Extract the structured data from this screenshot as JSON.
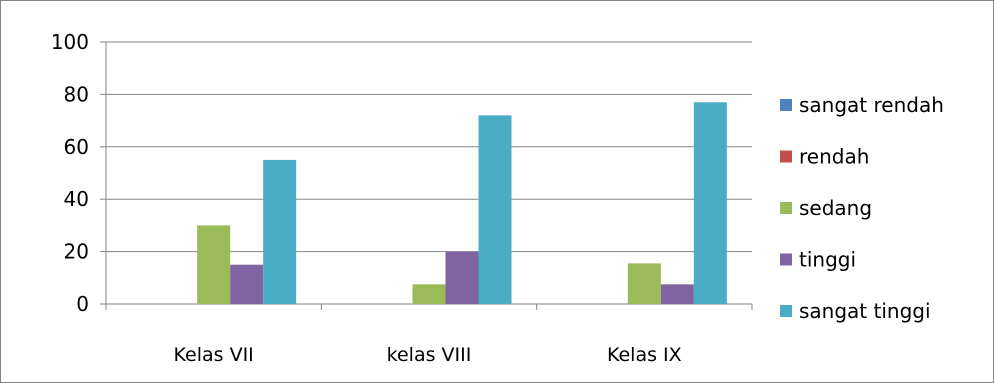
{
  "chart_data": {
    "type": "bar",
    "title": "",
    "xlabel": "",
    "ylabel": "",
    "categories": [
      "Kelas VII",
      "kelas VIII",
      "Kelas IX"
    ],
    "ylim": [
      0,
      100
    ],
    "yticks": [
      0,
      20,
      40,
      60,
      80,
      100
    ],
    "yticklabels": [
      "0",
      "20",
      "40",
      "60",
      "80",
      "100"
    ],
    "grid": true,
    "legend_position": "right",
    "series": [
      {
        "name": "sangat rendah",
        "color": "#4F81BD",
        "values": [
          0,
          0,
          0
        ]
      },
      {
        "name": "rendah",
        "color": "#C0504D",
        "values": [
          0,
          0,
          0
        ]
      },
      {
        "name": "sedang",
        "color": "#9BBB59",
        "values": [
          30,
          7.5,
          15.5
        ]
      },
      {
        "name": "tinggi",
        "color": "#8064A2",
        "values": [
          15,
          20,
          7.5
        ]
      },
      {
        "name": "sangat tinggi",
        "color": "#4BACC6",
        "values": [
          55,
          72,
          77
        ]
      }
    ]
  }
}
